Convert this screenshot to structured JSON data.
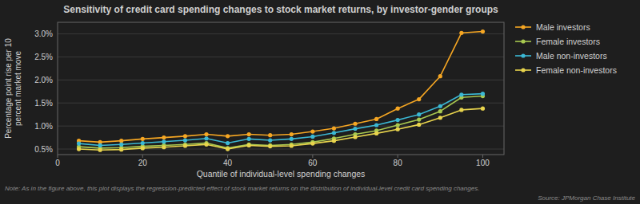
{
  "chart_data": {
    "type": "line",
    "title": "Sensitivity of credit card spending changes to stock market returns, by investor-gender groups",
    "xlabel": "Quantile of individual-level spending changes",
    "ylabel": "Percentage point rise per 10\npercent market move",
    "annotations": [
      "Note: As in the figure above, this plot displays the regression-predicted effect of stock market returns on the distribution of individual-level credit card spending changes.",
      "Source: JPMorgan Chase Institute"
    ],
    "x": [
      5,
      10,
      15,
      20,
      25,
      30,
      35,
      40,
      45,
      50,
      55,
      60,
      65,
      70,
      75,
      80,
      85,
      90,
      95,
      100
    ],
    "xlim": [
      0,
      105
    ],
    "xticks": [
      0,
      20,
      40,
      60,
      80,
      100
    ],
    "ylim": [
      0.38,
      3.25
    ],
    "yticks": [
      {
        "value": 0.5,
        "label": "0.5%"
      },
      {
        "value": 1.0,
        "label": "1.0%"
      },
      {
        "value": 1.5,
        "label": "1.5%"
      },
      {
        "value": 2.0,
        "label": "2.0%"
      },
      {
        "value": 2.5,
        "label": "2.5%"
      },
      {
        "value": 3.0,
        "label": "3.0%"
      }
    ],
    "grid": true,
    "legend": "right",
    "marker": "circle",
    "series": [
      {
        "name": "Male investors",
        "color": "#F5A623",
        "values": [
          0.68,
          0.65,
          0.68,
          0.72,
          0.75,
          0.78,
          0.82,
          0.78,
          0.82,
          0.8,
          0.82,
          0.88,
          0.95,
          1.05,
          1.15,
          1.38,
          1.58,
          2.08,
          3.02,
          3.05
        ]
      },
      {
        "name": "Female investors",
        "color": "#A8C850",
        "values": [
          0.55,
          0.52,
          0.53,
          0.56,
          0.58,
          0.6,
          0.63,
          0.52,
          0.6,
          0.58,
          0.6,
          0.65,
          0.73,
          0.82,
          0.9,
          1.02,
          1.14,
          1.32,
          1.62,
          1.65
        ]
      },
      {
        "name": "Male non-investors",
        "color": "#3BB8D4",
        "values": [
          0.62,
          0.58,
          0.6,
          0.63,
          0.66,
          0.69,
          0.73,
          0.63,
          0.72,
          0.69,
          0.72,
          0.77,
          0.85,
          0.94,
          1.02,
          1.13,
          1.25,
          1.43,
          1.68,
          1.7
        ]
      },
      {
        "name": "Female non-investors",
        "color": "#E8D44D",
        "values": [
          0.5,
          0.48,
          0.49,
          0.52,
          0.54,
          0.57,
          0.6,
          0.5,
          0.58,
          0.56,
          0.57,
          0.62,
          0.68,
          0.76,
          0.84,
          0.93,
          1.03,
          1.18,
          1.35,
          1.38
        ]
      }
    ]
  }
}
